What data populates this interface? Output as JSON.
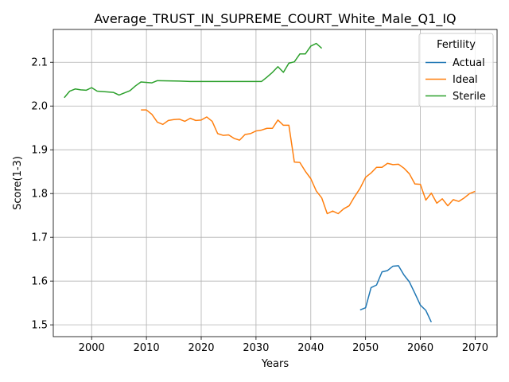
{
  "chart_data": {
    "type": "line",
    "title": "Average_TRUST_IN_SUPREME_COURT_White_Male_Q1_IQ",
    "xlabel": "Years",
    "ylabel": "Score(1-3)",
    "xlim": [
      1993,
      2074
    ],
    "ylim": [
      1.473,
      2.175
    ],
    "xticks": [
      2000,
      2010,
      2020,
      2030,
      2040,
      2050,
      2060,
      2070
    ],
    "yticks": [
      1.5,
      1.6,
      1.7,
      1.8,
      1.9,
      2.0,
      2.1
    ],
    "ytick_labels": [
      "1.5",
      "1.6",
      "1.7",
      "1.8",
      "1.9",
      "2.0",
      "2.1"
    ],
    "grid": true,
    "legend": {
      "title": "Fertility",
      "placement": "top-right"
    },
    "series": [
      {
        "name": "Actual",
        "color": "#1f77b4",
        "points": [
          [
            2049,
            1.534
          ],
          [
            2050,
            1.539
          ],
          [
            2051,
            1.585
          ],
          [
            2052,
            1.591
          ],
          [
            2053,
            1.621
          ],
          [
            2054,
            1.624
          ],
          [
            2055,
            1.634
          ],
          [
            2056,
            1.635
          ],
          [
            2057,
            1.614
          ],
          [
            2058,
            1.598
          ],
          [
            2059,
            1.572
          ],
          [
            2060,
            1.545
          ],
          [
            2061,
            1.533
          ],
          [
            2062,
            1.506
          ]
        ]
      },
      {
        "name": "Ideal",
        "color": "#ff7f0e",
        "points": [
          [
            2009,
            1.991
          ],
          [
            2010,
            1.991
          ],
          [
            2011,
            1.981
          ],
          [
            2012,
            1.963
          ],
          [
            2013,
            1.958
          ],
          [
            2014,
            1.967
          ],
          [
            2015,
            1.969
          ],
          [
            2016,
            1.97
          ],
          [
            2017,
            1.965
          ],
          [
            2018,
            1.972
          ],
          [
            2019,
            1.967
          ],
          [
            2020,
            1.968
          ],
          [
            2021,
            1.975
          ],
          [
            2022,
            1.965
          ],
          [
            2023,
            1.937
          ],
          [
            2024,
            1.933
          ],
          [
            2025,
            1.934
          ],
          [
            2026,
            1.926
          ],
          [
            2027,
            1.922
          ],
          [
            2028,
            1.935
          ],
          [
            2029,
            1.937
          ],
          [
            2030,
            1.943
          ],
          [
            2031,
            1.945
          ],
          [
            2032,
            1.949
          ],
          [
            2033,
            1.949
          ],
          [
            2034,
            1.968
          ],
          [
            2035,
            1.956
          ],
          [
            2036,
            1.956
          ],
          [
            2037,
            1.872
          ],
          [
            2038,
            1.871
          ],
          [
            2039,
            1.851
          ],
          [
            2040,
            1.834
          ],
          [
            2041,
            1.806
          ],
          [
            2042,
            1.79
          ],
          [
            2043,
            1.754
          ],
          [
            2044,
            1.76
          ],
          [
            2045,
            1.754
          ],
          [
            2046,
            1.765
          ],
          [
            2047,
            1.772
          ],
          [
            2048,
            1.793
          ],
          [
            2049,
            1.812
          ],
          [
            2050,
            1.837
          ],
          [
            2051,
            1.847
          ],
          [
            2052,
            1.86
          ],
          [
            2053,
            1.86
          ],
          [
            2054,
            1.869
          ],
          [
            2055,
            1.866
          ],
          [
            2056,
            1.867
          ],
          [
            2057,
            1.858
          ],
          [
            2058,
            1.845
          ],
          [
            2059,
            1.822
          ],
          [
            2060,
            1.821
          ],
          [
            2061,
            1.785
          ],
          [
            2062,
            1.801
          ],
          [
            2063,
            1.778
          ],
          [
            2064,
            1.788
          ],
          [
            2065,
            1.772
          ],
          [
            2066,
            1.786
          ],
          [
            2067,
            1.782
          ],
          [
            2068,
            1.79
          ],
          [
            2069,
            1.8
          ],
          [
            2070,
            1.805
          ]
        ]
      },
      {
        "name": "Sterile",
        "color": "#2ca02c",
        "points": [
          [
            1995,
            2.019
          ],
          [
            1996,
            2.034
          ],
          [
            1997,
            2.039
          ],
          [
            1998,
            2.037
          ],
          [
            1999,
            2.036
          ],
          [
            2000,
            2.042
          ],
          [
            2001,
            2.034
          ],
          [
            2004,
            2.031
          ],
          [
            2005,
            2.025
          ],
          [
            2007,
            2.035
          ],
          [
            2008,
            2.046
          ],
          [
            2009,
            2.055
          ],
          [
            2011,
            2.053
          ],
          [
            2012,
            2.058
          ],
          [
            2016,
            2.057
          ],
          [
            2018,
            2.056
          ],
          [
            2031,
            2.056
          ],
          [
            2032,
            2.066
          ],
          [
            2033,
            2.077
          ],
          [
            2034,
            2.09
          ],
          [
            2035,
            2.077
          ],
          [
            2036,
            2.098
          ],
          [
            2037,
            2.101
          ],
          [
            2038,
            2.119
          ],
          [
            2039,
            2.119
          ],
          [
            2040,
            2.137
          ],
          [
            2041,
            2.143
          ],
          [
            2042,
            2.132
          ]
        ]
      }
    ]
  }
}
